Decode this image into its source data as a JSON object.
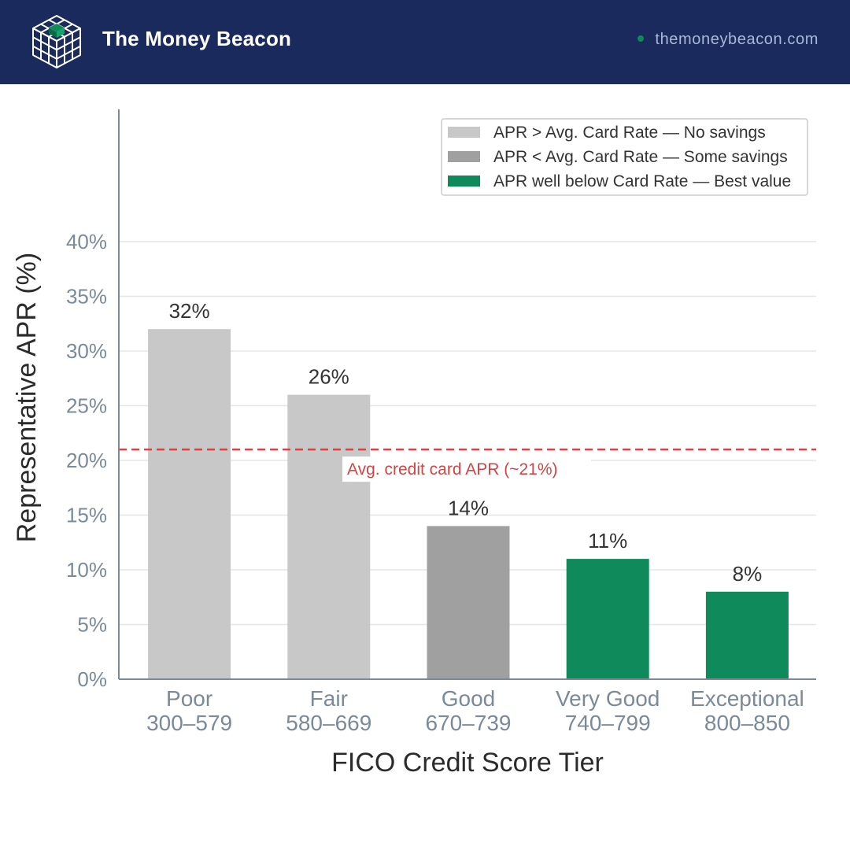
{
  "header": {
    "brand": "The Money Beacon",
    "site": "themoneybeacon.com",
    "background_color": "#1b2a5c",
    "logo_icon": "cube-grid-icon",
    "site_dot_color": "#0f8a5a"
  },
  "chart_data": {
    "type": "bar",
    "categories": [
      [
        "Poor",
        "300–579"
      ],
      [
        "Fair",
        "580–669"
      ],
      [
        "Good",
        "670–739"
      ],
      [
        "Very Good",
        "740–799"
      ],
      [
        "Exceptional",
        "800–850"
      ]
    ],
    "values": [
      32,
      26,
      14,
      11,
      8
    ],
    "value_labels": [
      "32%",
      "26%",
      "14%",
      "11%",
      "8%"
    ],
    "bar_groups": [
      0,
      0,
      1,
      2,
      2
    ],
    "xlabel": "FICO Credit Score Tier",
    "ylabel": "Representative APR (%)",
    "ylim": [
      0,
      52
    ],
    "yticks": [
      0,
      5,
      10,
      15,
      20,
      25,
      30,
      35,
      40
    ],
    "ytick_labels": [
      "0%",
      "5%",
      "10%",
      "15%",
      "20%",
      "25%",
      "30%",
      "35%",
      "40%"
    ],
    "grid": true,
    "legend_position": "top-right",
    "legend": [
      {
        "label": "APR > Avg. Card Rate — No savings",
        "color": "#c8c8c8"
      },
      {
        "label": "APR < Avg. Card Rate — Some savings",
        "color": "#a0a0a0"
      },
      {
        "label": "APR well below Card Rate — Best value",
        "color": "#0f8a5a"
      }
    ],
    "reference_line": {
      "value": 21,
      "label": "Avg. credit card APR (~21%)",
      "color": "#d04545",
      "style": "dashed"
    }
  }
}
